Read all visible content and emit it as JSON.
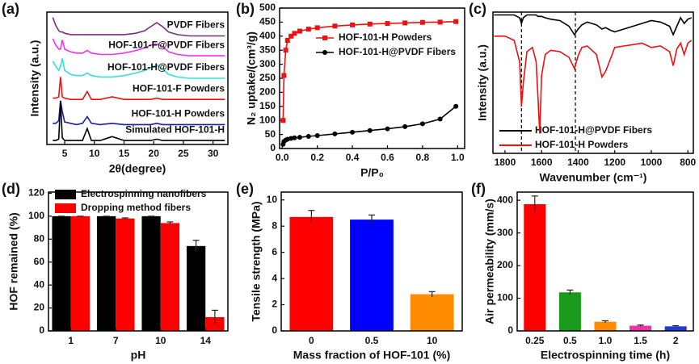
{
  "chart_data": [
    {
      "type": "line",
      "panel_label": "(a)",
      "xlabel": "2θ(degree)",
      "ylabel": "Intensity (a.u.)",
      "legend": "inline",
      "x": [
        3,
        3.5,
        4,
        4.3,
        4.6,
        5,
        6,
        7,
        8,
        8.8,
        9.5,
        11,
        13,
        15,
        17,
        18.5,
        19.5,
        20.5,
        21.5,
        22.5,
        24,
        26,
        28,
        30,
        32
      ],
      "xlim": [
        2,
        32.5
      ],
      "xticks": [
        5,
        10,
        15,
        20,
        25,
        30
      ],
      "ylim": [
        0,
        10
      ],
      "series": [
        {
          "name": "PVDF Fibers",
          "color": "#7b2c83",
          "values": [
            9.6,
            9.0,
            8.6,
            8.5,
            8.5,
            8.4,
            8.3,
            8.3,
            8.3,
            8.3,
            8.3,
            8.3,
            8.3,
            8.3,
            8.4,
            8.6,
            8.9,
            9.2,
            8.9,
            8.5,
            8.3,
            8.2,
            8.2,
            8.2,
            8.2
          ]
        },
        {
          "name": "HOF-101-F@PVDF Fibers",
          "color": "#ee33ee",
          "values": [
            8.0,
            7.5,
            7.2,
            7.2,
            7.9,
            7.2,
            7.0,
            6.9,
            6.9,
            7.1,
            6.9,
            6.8,
            6.8,
            6.9,
            7.1,
            7.3,
            7.5,
            7.6,
            7.4,
            7.0,
            6.8,
            6.7,
            6.7,
            6.7,
            6.7
          ]
        },
        {
          "name": "HOF-101-H@PVDF Fibers",
          "color": "#33e0e0",
          "values": [
            6.3,
            5.9,
            5.6,
            5.9,
            6.5,
            5.6,
            5.3,
            5.2,
            5.2,
            5.4,
            5.2,
            5.1,
            5.1,
            5.2,
            5.4,
            5.6,
            5.8,
            6.0,
            5.7,
            5.3,
            5.1,
            5.0,
            5.0,
            5.0,
            5.0
          ]
        },
        {
          "name": "HOF-101-F Powders",
          "color": "#ee1111",
          "values": [
            3.5,
            3.5,
            3.6,
            5.1,
            3.6,
            3.5,
            3.4,
            3.4,
            3.4,
            4.0,
            3.4,
            3.4,
            3.6,
            3.4,
            3.4,
            3.4,
            3.4,
            3.5,
            3.4,
            3.4,
            3.4,
            3.4,
            3.4,
            3.4,
            3.4
          ]
        },
        {
          "name": "HOF-101-H Powders",
          "color": "#1a1ab0",
          "values": [
            1.6,
            1.6,
            1.8,
            3.3,
            2.5,
            1.7,
            1.6,
            1.5,
            1.6,
            2.1,
            1.6,
            1.5,
            1.6,
            1.5,
            1.5,
            1.5,
            1.5,
            1.6,
            1.5,
            1.5,
            1.5,
            1.5,
            1.5,
            1.5,
            1.5
          ]
        },
        {
          "name": "Simulated HOF-101-H",
          "color": "#000000",
          "values": [
            0.3,
            0.3,
            0.4,
            3.3,
            0.5,
            0.3,
            0.3,
            0.3,
            0.3,
            1.2,
            0.3,
            0.3,
            0.6,
            0.3,
            0.3,
            0.3,
            0.3,
            0.4,
            0.3,
            0.3,
            0.3,
            0.3,
            0.3,
            0.3,
            0.3
          ]
        }
      ]
    },
    {
      "type": "line",
      "panel_label": "(b)",
      "xlabel": "P/P₀",
      "ylabel": "N₂ uptake/(cm³/g)",
      "legend": "upper center",
      "x": [
        0.005,
        0.01,
        0.02,
        0.03,
        0.05,
        0.07,
        0.1,
        0.15,
        0.2,
        0.3,
        0.4,
        0.5,
        0.6,
        0.7,
        0.8,
        0.9,
        0.99
      ],
      "xlim": [
        -0.015,
        1.04
      ],
      "xticks": [
        {
          "value": 0,
          "label": "0.0"
        },
        0.2,
        0.4,
        0.6,
        0.8,
        {
          "value": 1,
          "label": "1.0"
        }
      ],
      "ylim": [
        0,
        500
      ],
      "yticks": [
        0,
        50,
        100,
        150,
        200,
        250,
        300,
        350,
        400,
        450,
        500
      ],
      "series": [
        {
          "name": "HOF-101-H Powders",
          "color": "#ee1111",
          "marker": "square",
          "values": [
            100,
            260,
            350,
            385,
            400,
            410,
            418,
            425,
            430,
            436,
            440,
            443,
            445,
            447,
            449,
            450,
            452
          ]
        },
        {
          "name": "HOF-101-H@PVDF Fibers",
          "color": "#000000",
          "marker": "circle",
          "values": [
            15,
            25,
            30,
            33,
            36,
            38,
            40,
            43,
            46,
            52,
            58,
            64,
            70,
            78,
            88,
            105,
            150
          ]
        }
      ]
    },
    {
      "type": "line",
      "panel_label": "(c)",
      "xlabel": "Wavenumber (cm⁻¹)",
      "ylabel": "Intensity (a.u.)",
      "legend": "lower left",
      "x": [
        1860,
        1800,
        1750,
        1720,
        1710,
        1700,
        1680,
        1650,
        1630,
        1620,
        1610,
        1600,
        1580,
        1550,
        1500,
        1450,
        1420,
        1400,
        1380,
        1350,
        1300,
        1270,
        1250,
        1220,
        1200,
        1150,
        1100,
        1050,
        1000,
        950,
        900,
        880,
        860,
        840,
        820,
        800,
        780
      ],
      "xlim": [
        1866,
        770
      ],
      "xticks": [
        1800,
        1600,
        1400,
        1200,
        1000,
        800
      ],
      "ylim": [
        0,
        10
      ],
      "vlines": [
        1710,
        1415
      ],
      "series": [
        {
          "name": "HOF-101-H@PVDF Fibers",
          "color": "#000000",
          "values": [
            9.8,
            9.8,
            9.8,
            9.6,
            9.2,
            9.6,
            9.8,
            9.8,
            9.8,
            9.7,
            9.7,
            9.7,
            9.6,
            9.5,
            9.4,
            9.0,
            8.4,
            8.8,
            9.1,
            9.3,
            9.1,
            8.8,
            8.9,
            8.7,
            8.6,
            8.8,
            9.0,
            9.2,
            9.4,
            9.3,
            9.0,
            8.4,
            9.0,
            9.6,
            9.2,
            9.5,
            9.6
          ]
        },
        {
          "name": "HOF-101-H Powders",
          "color": "#ee1111",
          "values": [
            8.3,
            8.3,
            8.0,
            6.5,
            3.3,
            5.0,
            7.2,
            7.5,
            6.5,
            4.0,
            1.4,
            5.5,
            7.0,
            7.3,
            7.2,
            6.8,
            6.0,
            6.9,
            7.5,
            7.6,
            7.0,
            5.4,
            5.8,
            6.8,
            7.5,
            7.6,
            7.7,
            7.8,
            7.5,
            7.6,
            7.2,
            6.2,
            7.4,
            7.8,
            7.0,
            7.8,
            8.0
          ]
        }
      ]
    },
    {
      "type": "bar",
      "panel_label": "(d)",
      "xlabel": "pH",
      "ylabel": "HOF remained (%)",
      "legend": "upper left",
      "categories": [
        "1",
        "7",
        "10",
        "14"
      ],
      "ylim": [
        0,
        121
      ],
      "yticks": [
        0,
        20,
        40,
        60,
        80,
        100,
        120
      ],
      "series": [
        {
          "name": "Electrospinning nanofibers",
          "color": "#000000",
          "values": [
            100,
            100,
            100,
            74
          ],
          "errors": [
            0,
            0,
            0,
            5
          ]
        },
        {
          "name": "Dropping method fibers",
          "color": "#ff0000",
          "values": [
            100,
            98,
            94,
            12
          ],
          "errors": [
            0,
            0.5,
            1,
            6
          ]
        }
      ]
    },
    {
      "type": "bar",
      "panel_label": "(e)",
      "xlabel": "Mass fraction of HOF-101 (%)",
      "ylabel": "Tensile strength (MPa)",
      "categories": [
        "0",
        "0.5",
        "10"
      ],
      "values": [
        8.7,
        8.5,
        2.8
      ],
      "errors": [
        0.5,
        0.35,
        0.2
      ],
      "colors": [
        "#ff0000",
        "#0000ff",
        "#ff8c00"
      ],
      "ylim": [
        0,
        10.6
      ],
      "yticks": [
        0,
        2,
        4,
        6,
        8,
        10
      ]
    },
    {
      "type": "bar",
      "panel_label": "(f)",
      "xlabel": "Electrospinning time (h)",
      "ylabel": "Air permeability (mm/s)",
      "categories": [
        "0.25",
        "0.5",
        "1.0",
        "1.5",
        "2"
      ],
      "values": [
        388,
        118,
        28,
        16,
        14
      ],
      "errors": [
        25,
        7,
        3,
        2,
        2
      ],
      "colors": [
        "#ff0000",
        "#1a9a1a",
        "#ff8c00",
        "#ee33aa",
        "#1a3fd0"
      ],
      "ylim": [
        0,
        425
      ],
      "yticks": [
        0,
        100,
        200,
        300,
        400
      ]
    }
  ]
}
